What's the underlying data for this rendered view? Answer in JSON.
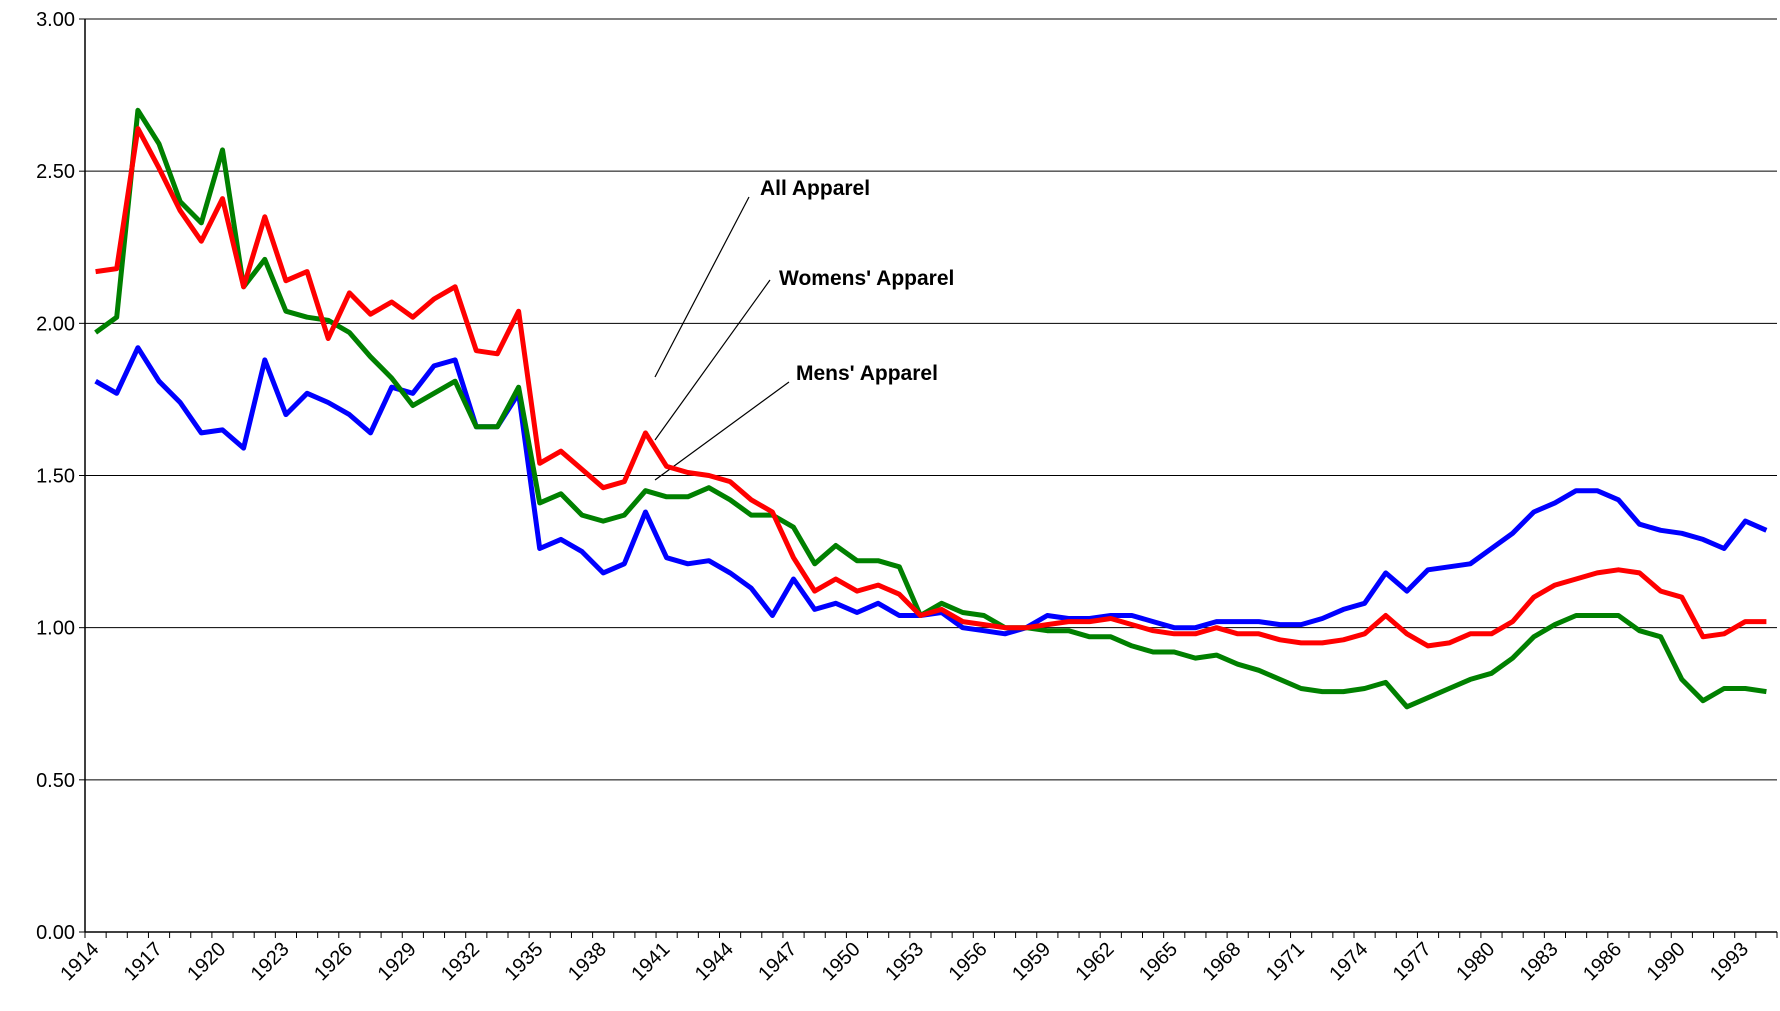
{
  "chart_data": {
    "type": "line",
    "categories": [
      "1914",
      null,
      null,
      "1917",
      null,
      null,
      "1920",
      null,
      null,
      "1923",
      null,
      null,
      "1926",
      null,
      null,
      "1929",
      null,
      null,
      "1932",
      null,
      null,
      "1935",
      null,
      null,
      "1938",
      null,
      null,
      "1941",
      null,
      null,
      "1944",
      null,
      null,
      "1947",
      null,
      null,
      "1950",
      null,
      null,
      "1953",
      null,
      null,
      "1956",
      null,
      null,
      "1959",
      null,
      null,
      "1962",
      null,
      null,
      "1965",
      null,
      null,
      "1968",
      null,
      null,
      "1971",
      null,
      null,
      "1974",
      null,
      null,
      "1977",
      null,
      null,
      "1980",
      null,
      null,
      "1983",
      null,
      null,
      "1986",
      null,
      null,
      "1990",
      null,
      null,
      "1993",
      null
    ],
    "series": [
      {
        "color": "#0000ff",
        "values": [
          1.81,
          1.77,
          1.92,
          1.81,
          1.74,
          1.64,
          1.65,
          1.59,
          1.88,
          1.7,
          1.77,
          1.74,
          1.7,
          1.64,
          1.79,
          1.77,
          1.86,
          1.88,
          1.66,
          1.66,
          1.77,
          1.26,
          1.29,
          1.25,
          1.18,
          1.21,
          1.38,
          1.23,
          1.21,
          1.22,
          1.18,
          1.13,
          1.04,
          1.16,
          1.06,
          1.08,
          1.05,
          1.08,
          1.04,
          1.04,
          1.05,
          1.0,
          0.99,
          0.98,
          1.0,
          1.04,
          1.03,
          1.03,
          1.04,
          1.04,
          1.02,
          1.0,
          1.0,
          1.02,
          1.02,
          1.02,
          1.01,
          1.01,
          1.03,
          1.06,
          1.08,
          1.18,
          1.12,
          1.19,
          1.2,
          1.21,
          1.26,
          1.31,
          1.38,
          1.41,
          1.45,
          1.45,
          1.42,
          1.34,
          1.32,
          1.31,
          1.29,
          1.26,
          1.35,
          1.32
        ]
      },
      {
        "color": "#008000",
        "values": [
          1.97,
          2.02,
          2.7,
          2.59,
          2.4,
          2.33,
          2.57,
          2.12,
          2.21,
          2.04,
          2.02,
          2.01,
          1.97,
          1.89,
          1.82,
          1.73,
          1.77,
          1.81,
          1.66,
          1.66,
          1.79,
          1.41,
          1.44,
          1.37,
          1.35,
          1.37,
          1.45,
          1.43,
          1.43,
          1.46,
          1.42,
          1.37,
          1.37,
          1.33,
          1.21,
          1.27,
          1.22,
          1.22,
          1.2,
          1.04,
          1.08,
          1.05,
          1.04,
          1.0,
          1.0,
          0.99,
          0.99,
          0.97,
          0.97,
          0.94,
          0.92,
          0.92,
          0.9,
          0.91,
          0.88,
          0.86,
          0.83,
          0.8,
          0.79,
          0.79,
          0.8,
          0.82,
          0.74,
          0.77,
          0.8,
          0.83,
          0.85,
          0.9,
          0.97,
          1.01,
          1.04,
          1.04,
          1.04,
          0.99,
          0.97,
          0.83,
          0.76,
          0.8,
          0.8,
          0.79
        ]
      },
      {
        "color": "#ff0000",
        "values": [
          2.17,
          2.18,
          2.64,
          2.51,
          2.37,
          2.27,
          2.41,
          2.12,
          2.35,
          2.14,
          2.17,
          1.95,
          2.1,
          2.03,
          2.07,
          2.02,
          2.08,
          2.12,
          1.91,
          1.9,
          2.04,
          1.54,
          1.58,
          1.52,
          1.46,
          1.48,
          1.64,
          1.53,
          1.51,
          1.5,
          1.48,
          1.42,
          1.38,
          1.23,
          1.12,
          1.16,
          1.12,
          1.14,
          1.11,
          1.04,
          1.06,
          1.02,
          1.01,
          1.0,
          1.0,
          1.01,
          1.02,
          1.02,
          1.03,
          1.01,
          0.99,
          0.98,
          0.98,
          1.0,
          0.98,
          0.98,
          0.96,
          0.95,
          0.95,
          0.96,
          0.98,
          1.04,
          0.98,
          0.94,
          0.95,
          0.98,
          0.98,
          1.02,
          1.1,
          1.14,
          1.16,
          1.18,
          1.19,
          1.18,
          1.12,
          1.1,
          0.97,
          0.98,
          1.02,
          1.02
        ]
      }
    ],
    "annotations": [
      "All Apparel",
      "Womens' Apparel",
      "Mens' Apparel"
    ],
    "ylim": [
      0,
      3
    ],
    "yticks": [
      {
        "value": 0,
        "label": "0.00"
      },
      {
        "value": 0.5,
        "label": "0.50"
      },
      {
        "value": 1,
        "label": "1.00"
      },
      {
        "value": 1.5,
        "label": "1.50"
      },
      {
        "value": 2,
        "label": "2.00"
      },
      {
        "value": 2.5,
        "label": "2.50"
      },
      {
        "value": 3,
        "label": "3.00"
      }
    ],
    "grid": true
  }
}
